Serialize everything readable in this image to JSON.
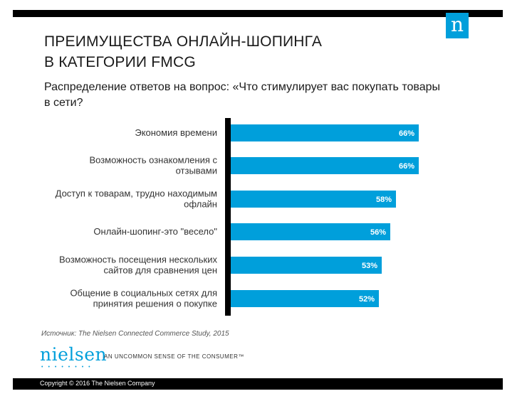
{
  "header": {
    "title_line1": "ПРЕИМУЩЕСТВА ОНЛАЙН-ШОПИНГА",
    "title_line2": "В КАТЕГОРИИ FMCG",
    "subtitle": "Распределение ответов на вопрос: «Что стимулирует вас покупать товары в сети?",
    "logo_letter": "n"
  },
  "colors": {
    "bar": "#009fdb",
    "axis": "#000000",
    "brand": "#009fdb"
  },
  "chart_data": {
    "type": "bar",
    "orientation": "horizontal",
    "categories": [
      [
        "Экономия времени"
      ],
      [
        "Возможность ознакомления с",
        "отзывами"
      ],
      [
        "Доступ к товарам, трудно находимым",
        "офлайн"
      ],
      [
        "Онлайн-шопинг-это \"весело\""
      ],
      [
        "Возможность посещения нескольких",
        "сайтов для сравнения цен"
      ],
      [
        "Общение в  социальных сетях для",
        "принятия решения о покупке"
      ]
    ],
    "values": [
      66,
      66,
      58,
      56,
      53,
      52
    ],
    "value_labels": [
      "66%",
      "66%",
      "58%",
      "56%",
      "53%",
      "52%"
    ],
    "xlim": [
      0,
      100
    ]
  },
  "source": "Источник: The Nielsen Connected Commerce Study, 2015",
  "brand": {
    "name": "nielsen",
    "tagline": "AN UNCOMMON SENSE OF THE CONSUMER™"
  },
  "footer": {
    "copyright": "Copyright © 2016 The Nielsen Company"
  }
}
